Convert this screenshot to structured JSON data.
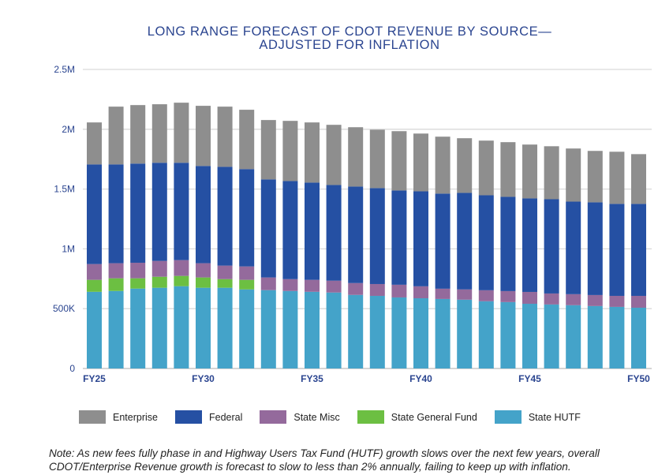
{
  "chart_data": {
    "type": "bar",
    "stacked": true,
    "title": "LONG RANGE FORECAST OF CDOT REVENUE BY SOURCE—\nADJUSTED FOR INFLATION",
    "title_lines": [
      "LONG RANGE FORECAST OF CDOT REVENUE BY SOURCE—",
      "ADJUSTED FOR INFLATION"
    ],
    "xlabel": "",
    "ylabel": "",
    "ylim": [
      0,
      2500000
    ],
    "y_ticks": [
      0,
      500000,
      1000000,
      1500000,
      2000000,
      2500000
    ],
    "y_tick_labels": [
      "0",
      "500K",
      "1M",
      "1.5M",
      "2M",
      "2.5M"
    ],
    "categories": [
      "FY25",
      "FY26",
      "FY27",
      "FY28",
      "FY29",
      "FY30",
      "FY31",
      "FY32",
      "FY33",
      "FY34",
      "FY35",
      "FY36",
      "FY37",
      "FY38",
      "FY39",
      "FY40",
      "FY41",
      "FY42",
      "FY43",
      "FY44",
      "FY45",
      "FY46",
      "FY47",
      "FY48",
      "FY49",
      "FY50"
    ],
    "x_tick_labels": [
      {
        "index": 0,
        "label": "FY25"
      },
      {
        "index": 5,
        "label": "FY30"
      },
      {
        "index": 10,
        "label": "FY35"
      },
      {
        "index": 15,
        "label": "FY40"
      },
      {
        "index": 20,
        "label": "FY45"
      },
      {
        "index": 25,
        "label": "FY50"
      }
    ],
    "grid": true,
    "legend_position": "bottom",
    "series": [
      {
        "name": "State HUTF",
        "color": "#44a3c9",
        "values": [
          641000,
          648000,
          668000,
          675000,
          688000,
          675000,
          675000,
          661000,
          655000,
          648000,
          641000,
          635000,
          615000,
          607000,
          594000,
          587000,
          581000,
          575000,
          562000,
          555000,
          541000,
          535000,
          529000,
          522000,
          515000,
          508000
        ]
      },
      {
        "name": "State General Fund",
        "color": "#6cbf42",
        "values": [
          100000,
          106000,
          86000,
          92000,
          86000,
          86000,
          72000,
          80000,
          0,
          0,
          0,
          0,
          0,
          0,
          0,
          0,
          0,
          0,
          0,
          0,
          0,
          0,
          0,
          0,
          0,
          0
        ]
      },
      {
        "name": "State Misc",
        "color": "#946a9c",
        "values": [
          132000,
          126000,
          130000,
          132000,
          132000,
          119000,
          113000,
          112000,
          106000,
          99000,
          100000,
          99000,
          99000,
          99000,
          106000,
          100000,
          86000,
          86000,
          92000,
          92000,
          99000,
          92000,
          92000,
          92000,
          92000,
          99000
        ]
      },
      {
        "name": "Federal",
        "color": "#2550a3",
        "values": [
          833000,
          826000,
          829000,
          821000,
          814000,
          813000,
          826000,
          814000,
          820000,
          820000,
          813000,
          800000,
          807000,
          802000,
          788000,
          794000,
          795000,
          807000,
          794000,
          788000,
          782000,
          788000,
          774000,
          775000,
          769000,
          769000
        ]
      },
      {
        "name": "Enterprise",
        "color": "#8e8e8e",
        "values": [
          351000,
          483000,
          489000,
          489000,
          502000,
          503000,
          503000,
          496000,
          496000,
          503000,
          503000,
          503000,
          496000,
          488000,
          496000,
          483000,
          476000,
          457000,
          457000,
          457000,
          450000,
          443000,
          444000,
          430000,
          436000,
          416000
        ]
      }
    ],
    "legend_order": [
      "Enterprise",
      "Federal",
      "State Misc",
      "State General Fund",
      "State HUTF"
    ]
  },
  "note": "Note: As new fees fully phase in and Highway Users Tax Fund (HUTF) growth slows over the next few years, overall CDOT/Enterprise Revenue growth is forecast to slow to less than 2% annually, failing to keep up with inflation.",
  "colors": {
    "axis_text": "#2b4590",
    "grid": "#d9d9d9"
  }
}
